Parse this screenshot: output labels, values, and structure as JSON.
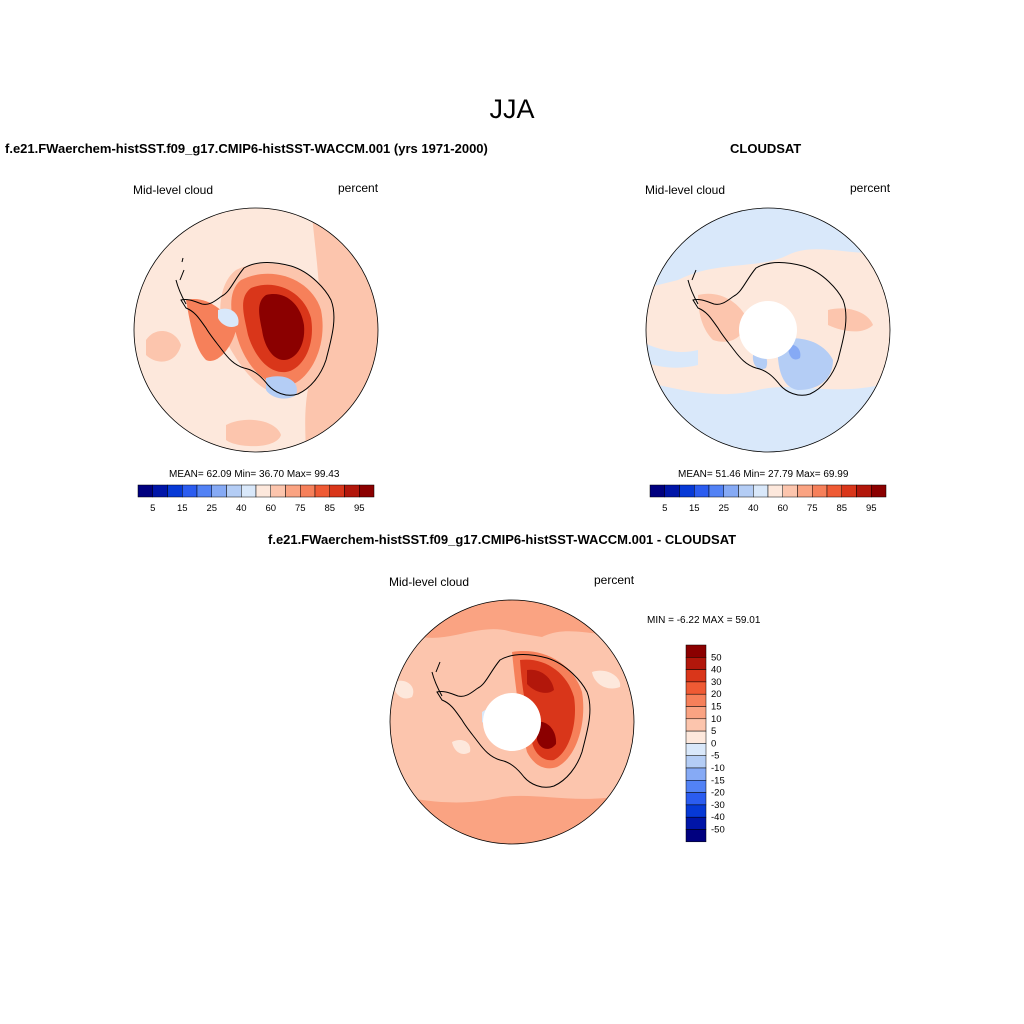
{
  "figure": {
    "title": "JJA"
  },
  "panels": [
    {
      "title": "f.e21.FWaerchem-histSST.f09_g17.CMIP6-histSST-WACCM.001 (yrs 1971-2000)",
      "left_label": "Mid-level cloud",
      "right_label": "percent",
      "stats": "MEAN=  62.09  Min=  36.70  Max=  99.43"
    },
    {
      "title": "CLOUDSAT",
      "left_label": "Mid-level cloud",
      "right_label": "percent",
      "stats": "MEAN=  51.46  Min=  27.79  Max=  69.99"
    },
    {
      "title": "f.e21.FWaerchem-histSST.f09_g17.CMIP6-histSST-WACCM.001 - CLOUDSAT",
      "left_label": "Mid-level cloud",
      "right_label": "percent",
      "stats": "MIN =  -6.22 MAX =  59.01"
    }
  ],
  "colorbar_abs": {
    "colors": [
      "#00007f",
      "#0015a8",
      "#0639d6",
      "#2b5cf0",
      "#5282f5",
      "#86aaf5",
      "#b4cdf5",
      "#d9e8fa",
      "#fde8dc",
      "#fcc5ad",
      "#faa382",
      "#f6805a",
      "#ef5a34",
      "#d9361a",
      "#b2170b",
      "#8b0000"
    ],
    "labels": [
      "5",
      "15",
      "25",
      "40",
      "60",
      "75",
      "85",
      "95"
    ]
  },
  "colorbar_diff": {
    "colors": [
      "#8b0000",
      "#b2170b",
      "#d9361a",
      "#ef5a34",
      "#f6805a",
      "#faa382",
      "#fcc5ad",
      "#fde8dc",
      "#d9e8fa",
      "#b4cdf5",
      "#86aaf5",
      "#5282f5",
      "#2b5cf0",
      "#0639d6",
      "#0015a8",
      "#00007f"
    ],
    "labels": [
      "50",
      "40",
      "30",
      "20",
      "15",
      "10",
      "5",
      "0",
      "-5",
      "-10",
      "-15",
      "-20",
      "-30",
      "-40",
      "-50"
    ]
  }
}
